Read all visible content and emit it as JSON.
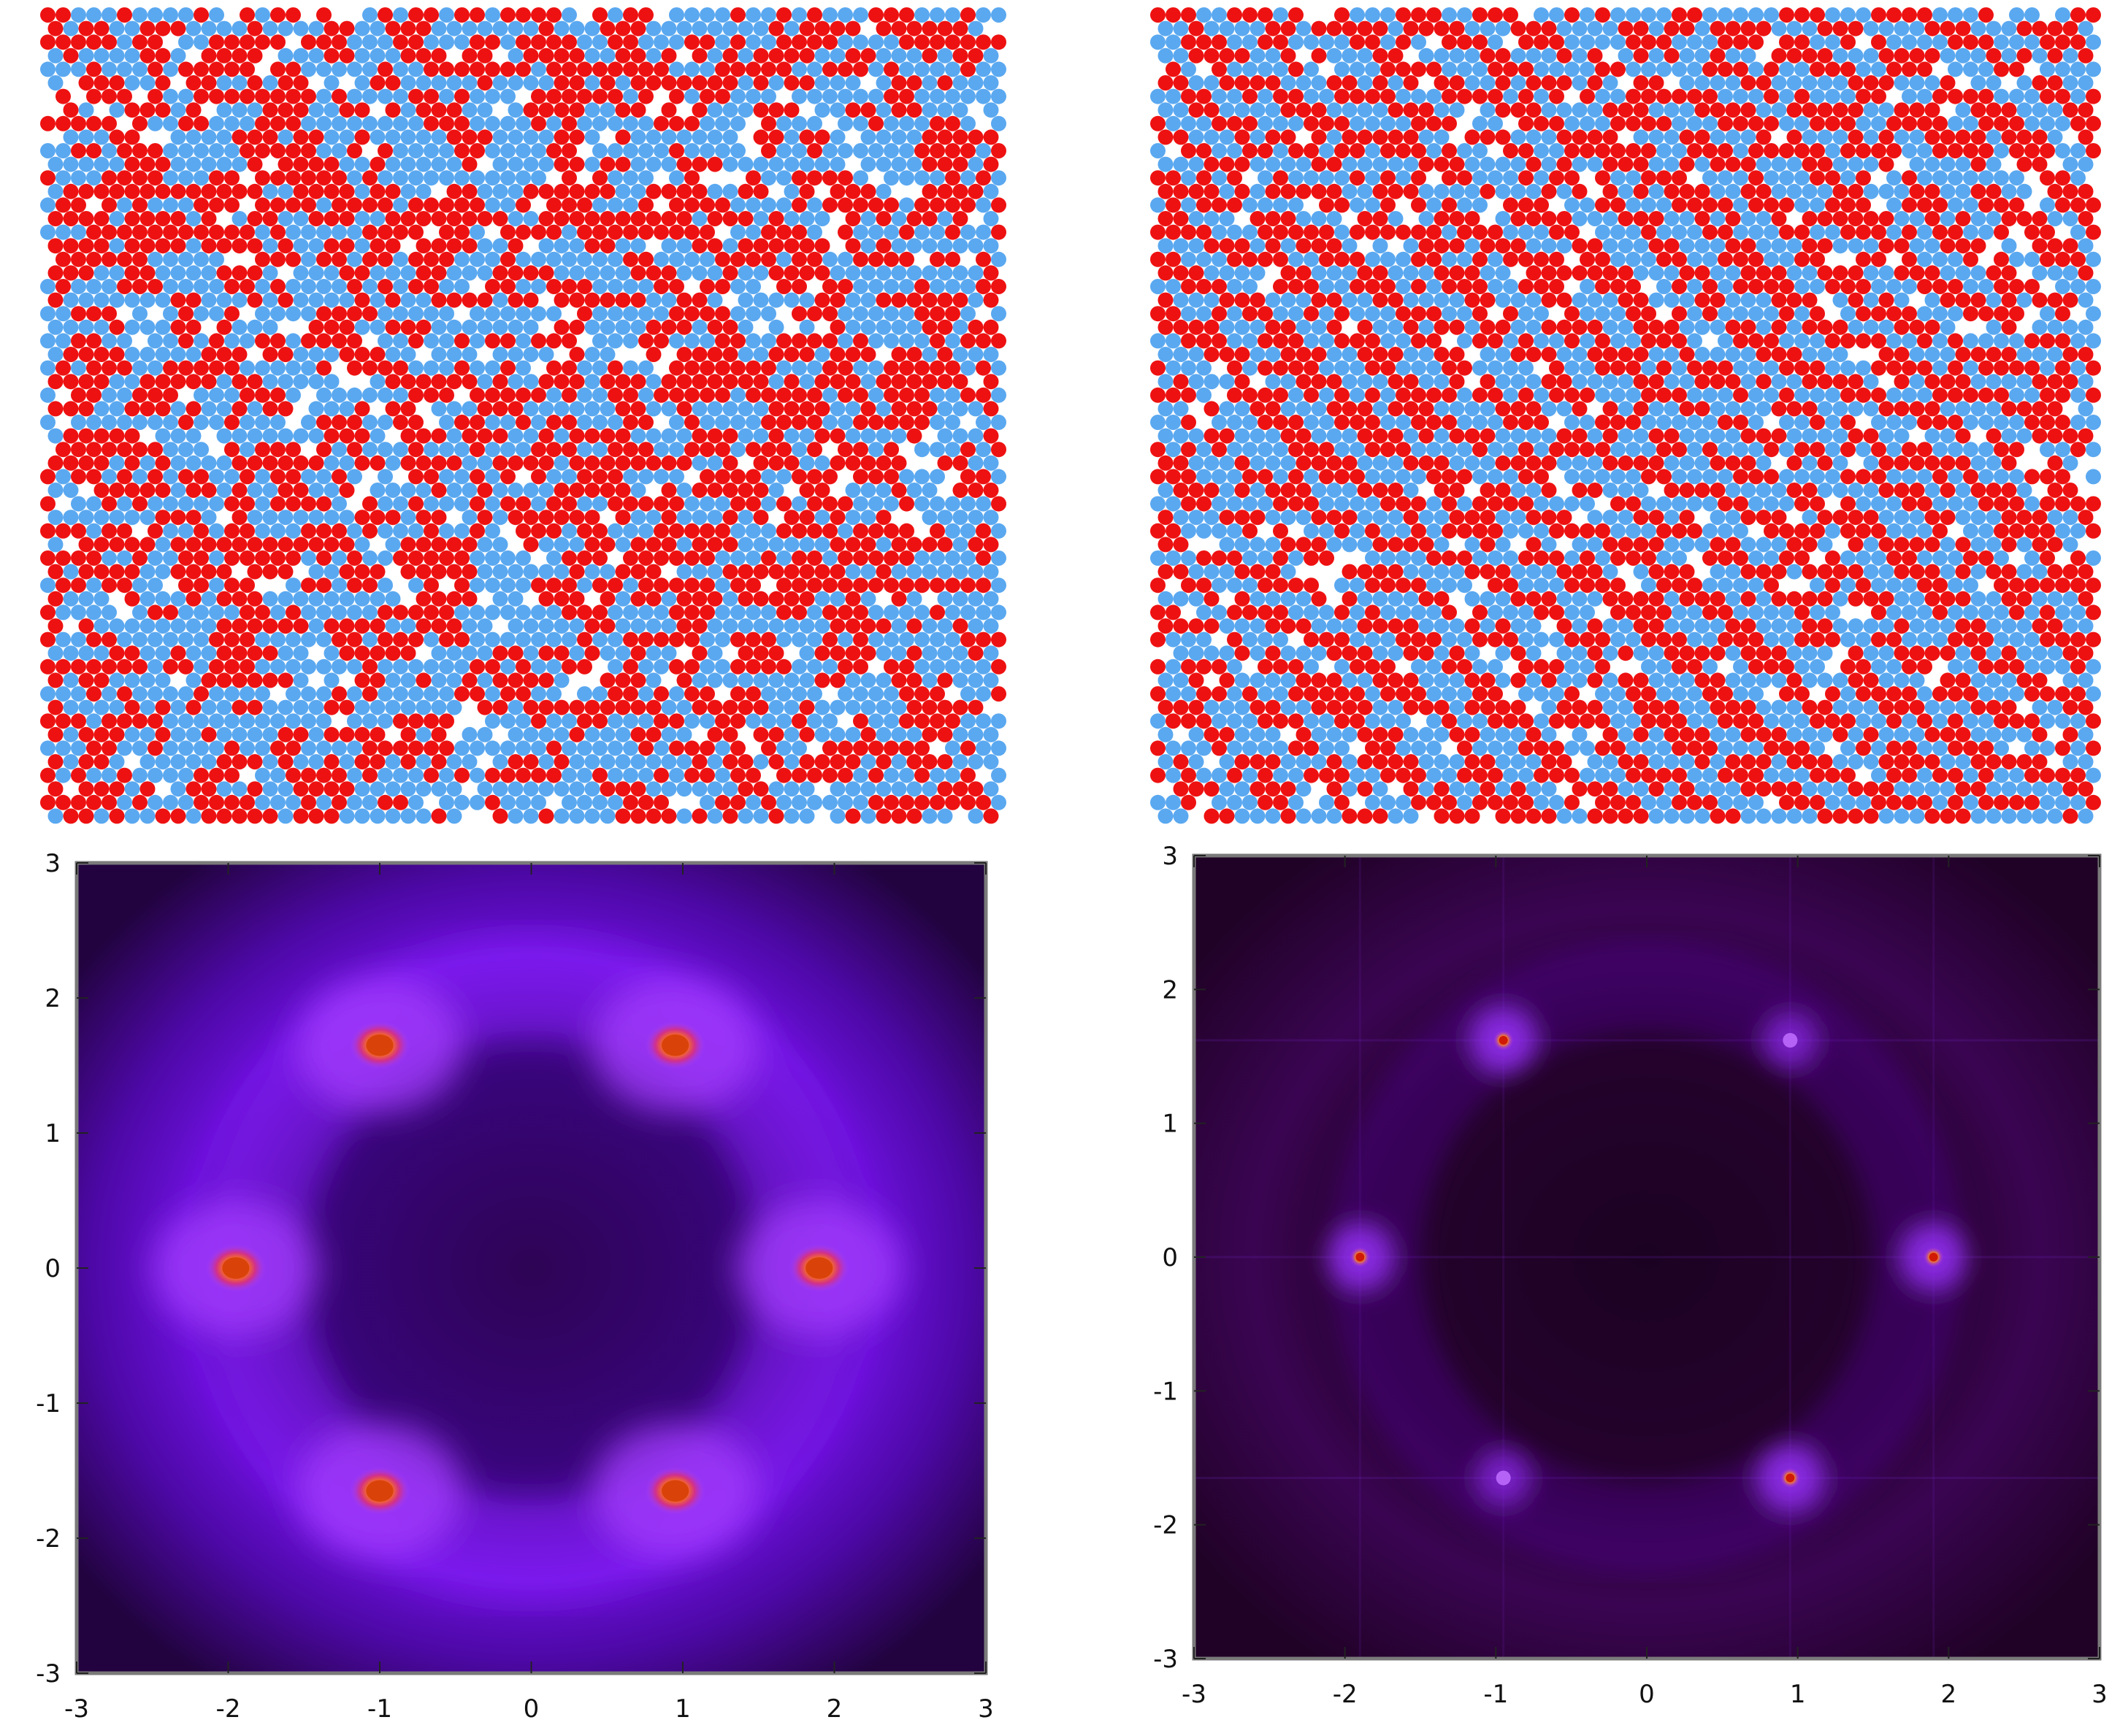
{
  "colors": {
    "particle_a": "#ee1111",
    "particle_b": "#5aa8f0",
    "background": "#ffffff",
    "frame": "#7a7a7a"
  },
  "lattices": [
    {
      "name": "lattice-left",
      "ordering": "isotropic-mixed"
    },
    {
      "name": "lattice-right",
      "ordering": "diagonal-stripes"
    }
  ],
  "chart_data": [
    {
      "type": "heatmap",
      "title": "",
      "xlabel": "",
      "ylabel": "",
      "xlim": [
        -3,
        3
      ],
      "ylim": [
        -3,
        3
      ],
      "x_ticks": [
        "-3",
        "-2",
        "-1",
        "0",
        "1",
        "2",
        "3"
      ],
      "y_ticks": [
        "3",
        "2",
        "1",
        "0",
        "-1",
        "-2",
        "-3"
      ],
      "colormap": "black-purple-violet-orange",
      "peaks": [
        {
          "x": -1.0,
          "y": 1.65
        },
        {
          "x": 0.95,
          "y": 1.65
        },
        {
          "x": -1.95,
          "y": 0.0
        },
        {
          "x": 1.9,
          "y": 0.0
        },
        {
          "x": -1.0,
          "y": -1.65
        },
        {
          "x": 0.95,
          "y": -1.65
        }
      ]
    },
    {
      "type": "heatmap",
      "title": "",
      "xlabel": "",
      "ylabel": "",
      "xlim": [
        -3,
        3
      ],
      "ylim": [
        -3,
        3
      ],
      "x_ticks": [
        "-3",
        "-2",
        "-1",
        "0",
        "1",
        "2",
        "3"
      ],
      "y_ticks": [
        "3",
        "2",
        "1",
        "0",
        "-1",
        "-2",
        "-3"
      ],
      "colormap": "black-purple-violet-orange",
      "peaks": [
        {
          "x": -0.95,
          "y": 1.62,
          "strength": "strong"
        },
        {
          "x": 0.95,
          "y": 1.62,
          "strength": "weak"
        },
        {
          "x": -1.9,
          "y": 0.0,
          "strength": "strong"
        },
        {
          "x": 1.9,
          "y": 0.0,
          "strength": "strong"
        },
        {
          "x": -0.95,
          "y": -1.65,
          "strength": "weak"
        },
        {
          "x": 0.95,
          "y": -1.65,
          "strength": "strong"
        }
      ]
    }
  ]
}
